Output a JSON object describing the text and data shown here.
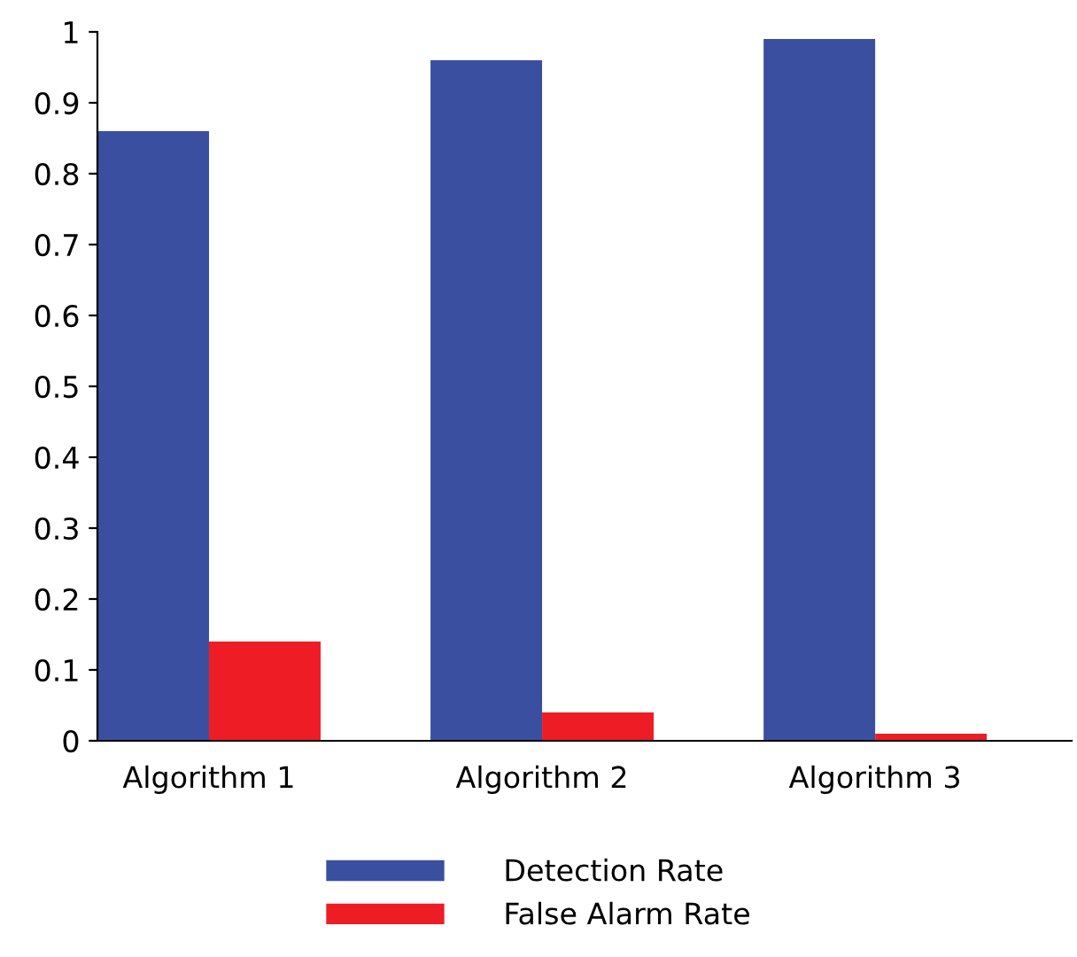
{
  "chart_data": {
    "type": "bar",
    "categories": [
      "Algorithm 1",
      "Algorithm 2",
      "Algorithm 3"
    ],
    "series": [
      {
        "name": "Detection Rate",
        "color": "#3a4fa0",
        "values": [
          0.86,
          0.96,
          0.99
        ]
      },
      {
        "name": "False Alarm Rate",
        "color": "#ee1c25",
        "values": [
          0.14,
          0.04,
          0.01
        ]
      }
    ],
    "ylim": [
      0,
      1
    ],
    "yticks": [
      0,
      0.1,
      0.2,
      0.3,
      0.4,
      0.5,
      0.6,
      0.7,
      0.8,
      0.9,
      1
    ],
    "grid": false,
    "legend": "bottom"
  }
}
